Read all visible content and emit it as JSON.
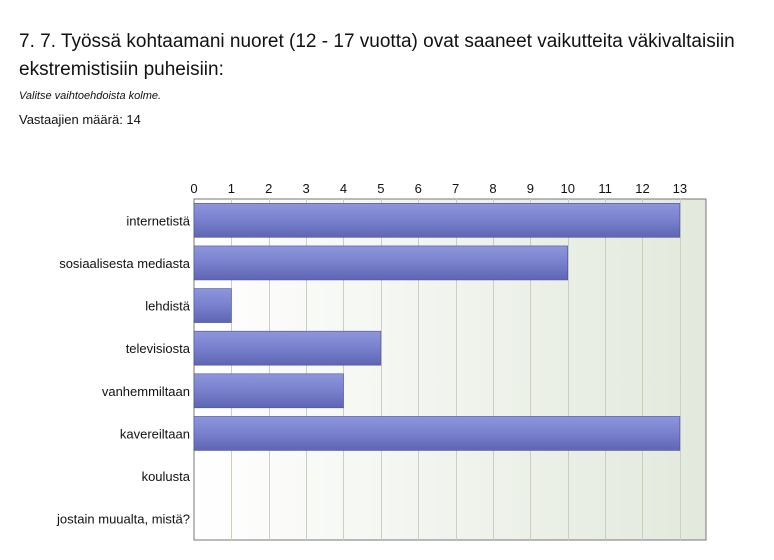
{
  "question": {
    "title": "7. 7. Työssä kohtaamani nuoret (12 - 17 vuotta) ovat saaneet vaikutteita väkivaltaisiin ekstremistisiin puheisiin:",
    "instruction": "Valitse vaihtoehdoista kolme.",
    "respondents": "Vastaajien määrä: 14"
  },
  "colors": {
    "bar_fill_top": "#8d95dc",
    "bar_fill_mid": "#7b83cf",
    "bar_fill_bottom": "#5e66b4",
    "bar_stroke": "#4a52a0",
    "plot_bg_left": "#ffffff",
    "plot_bg_right": "#e2e9dc",
    "grid": "#c8d0c0",
    "axis": "#777777"
  },
  "chart_data": {
    "type": "bar",
    "orientation": "horizontal",
    "categories": [
      "internetistä",
      "sosiaalisesta mediasta",
      "lehdistä",
      "televisiosta",
      "vanhemmiltaan",
      "kavereiltaan",
      "koulusta",
      "jostain muualta, mistä?"
    ],
    "values": [
      13,
      10,
      1,
      5,
      4,
      13,
      0,
      0
    ],
    "xlim": [
      0,
      13.7
    ],
    "x_ticks": [
      0,
      1,
      2,
      3,
      4,
      5,
      6,
      7,
      8,
      9,
      10,
      11,
      12,
      13
    ],
    "x_tick_labels": [
      "0",
      "1",
      "2",
      "3",
      "4",
      "5",
      "6",
      "7",
      "8",
      "9",
      "10",
      "11",
      "12",
      "13"
    ],
    "x_axis_position": "top",
    "grid": true,
    "legend": "none"
  }
}
